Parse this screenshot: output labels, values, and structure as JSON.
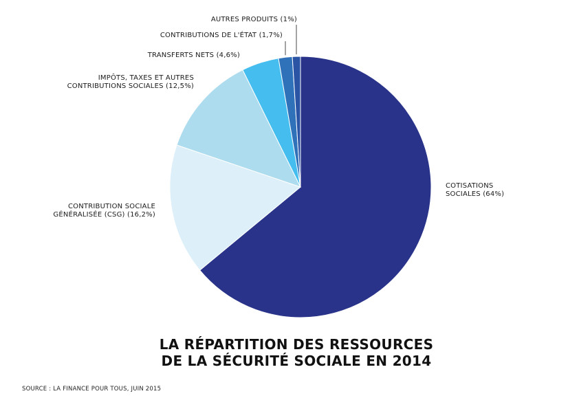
{
  "chart_data": {
    "type": "pie",
    "title": "LA RÉPARTITION DES RESSOURCES DE LA SÉCURITÉ SOCIALE EN 2014",
    "title_lines": [
      "LA RÉPARTITION DES RESSOURCES",
      "DE LA SÉCURITÉ SOCIALE EN 2014"
    ],
    "start": "12 o'clock, clockwise",
    "slices": [
      {
        "name": "Cotisations sociales",
        "value": 64,
        "label_lines": [
          "COTISATIONS",
          "SOCIALES (64%)"
        ],
        "color": "#283389"
      },
      {
        "name": "Contribution sociale généralisée (CSG)",
        "value": 16.2,
        "label_lines": [
          "CONTRIBUTION SOCIALE",
          "GÉNÉRALISÉE (CSG) (16,2%)"
        ],
        "color": "#ddeff9"
      },
      {
        "name": "Impôts, taxes et autres contributions sociales",
        "value": 12.5,
        "label_lines": [
          "IMPÔTS, TAXES ET AUTRES",
          "CONTRIBUTIONS SOCIALES (12,5%)"
        ],
        "color": "#addcef"
      },
      {
        "name": "Transferts nets",
        "value": 4.6,
        "label_lines": [
          "TRANSFERTS NETS (4,6%)"
        ],
        "color": "#45bdee"
      },
      {
        "name": "Contributions de l'État",
        "value": 1.7,
        "label_lines": [
          "CONTRIBUTIONS DE L'ÉTAT (1,7%)"
        ],
        "color": "#2f72ba"
      },
      {
        "name": "Autres produits",
        "value": 1,
        "label_lines": [
          "AUTRES PRODUITS (1%)"
        ],
        "color": "#2b54a5"
      }
    ],
    "source": "SOURCE : LA FINANCE POUR TOUS, JUIN 2015"
  }
}
